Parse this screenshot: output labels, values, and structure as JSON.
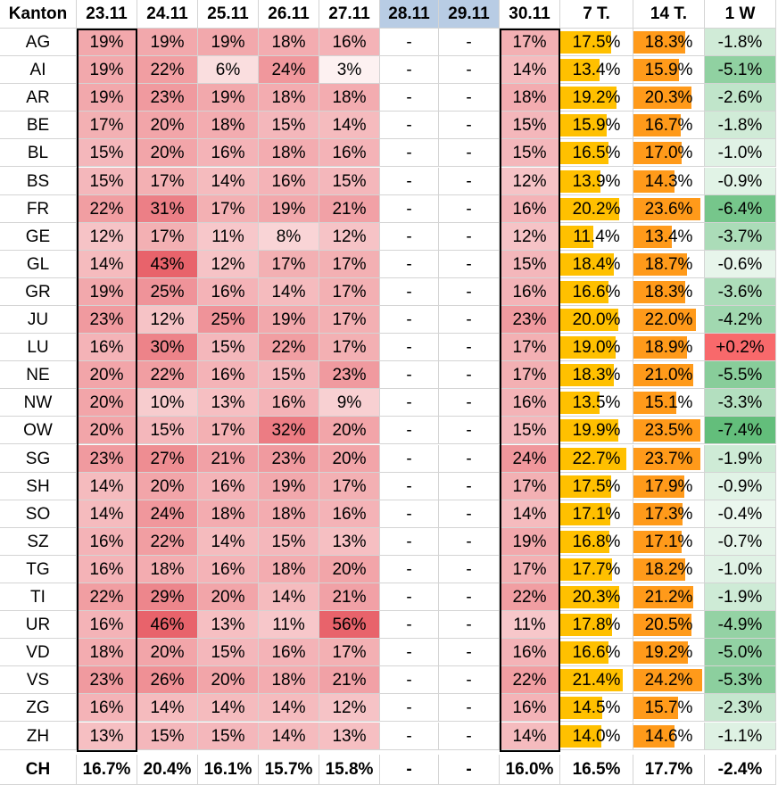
{
  "table": {
    "headers": [
      "Kanton",
      "23.11",
      "24.11",
      "25.11",
      "26.11",
      "27.11",
      "28.11",
      "29.11",
      "30.11",
      "7 T.",
      "14 T.",
      "1 W"
    ],
    "weekend_headers": [
      "28.11",
      "29.11"
    ],
    "rows": [
      [
        "AG",
        "19%",
        "19%",
        "19%",
        "18%",
        "16%",
        "-",
        "-",
        "17%",
        "17.5%",
        "18.3%",
        "-1.8%"
      ],
      [
        "AI",
        "19%",
        "22%",
        "6%",
        "24%",
        "3%",
        "-",
        "-",
        "14%",
        "13.4%",
        "15.9%",
        "-5.1%"
      ],
      [
        "AR",
        "19%",
        "23%",
        "19%",
        "18%",
        "18%",
        "-",
        "-",
        "18%",
        "19.2%",
        "20.3%",
        "-2.6%"
      ],
      [
        "BE",
        "17%",
        "20%",
        "18%",
        "15%",
        "14%",
        "-",
        "-",
        "15%",
        "15.9%",
        "16.7%",
        "-1.8%"
      ],
      [
        "BL",
        "15%",
        "20%",
        "16%",
        "18%",
        "16%",
        "-",
        "-",
        "15%",
        "16.5%",
        "17.0%",
        "-1.0%"
      ],
      [
        "BS",
        "15%",
        "17%",
        "14%",
        "16%",
        "15%",
        "-",
        "-",
        "12%",
        "13.9%",
        "14.3%",
        "-0.9%"
      ],
      [
        "FR",
        "22%",
        "31%",
        "17%",
        "19%",
        "21%",
        "-",
        "-",
        "16%",
        "20.2%",
        "23.6%",
        "-6.4%"
      ],
      [
        "GE",
        "12%",
        "17%",
        "11%",
        "8%",
        "12%",
        "-",
        "-",
        "12%",
        "11.4%",
        "13.4%",
        "-3.7%"
      ],
      [
        "GL",
        "14%",
        "43%",
        "12%",
        "17%",
        "17%",
        "-",
        "-",
        "15%",
        "18.4%",
        "18.7%",
        "-0.6%"
      ],
      [
        "GR",
        "19%",
        "25%",
        "16%",
        "14%",
        "17%",
        "-",
        "-",
        "16%",
        "16.6%",
        "18.3%",
        "-3.6%"
      ],
      [
        "JU",
        "23%",
        "12%",
        "25%",
        "19%",
        "17%",
        "-",
        "-",
        "23%",
        "20.0%",
        "22.0%",
        "-4.2%"
      ],
      [
        "LU",
        "16%",
        "30%",
        "15%",
        "22%",
        "17%",
        "-",
        "-",
        "17%",
        "19.0%",
        "18.9%",
        "+0.2%"
      ],
      [
        "NE",
        "20%",
        "22%",
        "16%",
        "15%",
        "23%",
        "-",
        "-",
        "17%",
        "18.3%",
        "21.0%",
        "-5.5%"
      ],
      [
        "NW",
        "20%",
        "10%",
        "13%",
        "16%",
        "9%",
        "-",
        "-",
        "16%",
        "13.5%",
        "15.1%",
        "-3.3%"
      ],
      [
        "OW",
        "20%",
        "15%",
        "17%",
        "32%",
        "20%",
        "-",
        "-",
        "15%",
        "19.9%",
        "23.5%",
        "-7.4%"
      ],
      [
        "SG",
        "23%",
        "27%",
        "21%",
        "23%",
        "20%",
        "-",
        "-",
        "24%",
        "22.7%",
        "23.7%",
        "-1.9%"
      ],
      [
        "SH",
        "14%",
        "20%",
        "16%",
        "19%",
        "17%",
        "-",
        "-",
        "17%",
        "17.5%",
        "17.9%",
        "-0.9%"
      ],
      [
        "SO",
        "14%",
        "24%",
        "18%",
        "18%",
        "16%",
        "-",
        "-",
        "14%",
        "17.1%",
        "17.3%",
        "-0.4%"
      ],
      [
        "SZ",
        "16%",
        "22%",
        "14%",
        "15%",
        "13%",
        "-",
        "-",
        "19%",
        "16.8%",
        "17.1%",
        "-0.7%"
      ],
      [
        "TG",
        "16%",
        "18%",
        "16%",
        "18%",
        "20%",
        "-",
        "-",
        "17%",
        "17.7%",
        "18.2%",
        "-1.0%"
      ],
      [
        "TI",
        "22%",
        "29%",
        "20%",
        "14%",
        "21%",
        "-",
        "-",
        "22%",
        "20.3%",
        "21.2%",
        "-1.9%"
      ],
      [
        "UR",
        "16%",
        "46%",
        "13%",
        "11%",
        "56%",
        "-",
        "-",
        "11%",
        "17.8%",
        "20.5%",
        "-4.9%"
      ],
      [
        "VD",
        "18%",
        "20%",
        "15%",
        "16%",
        "17%",
        "-",
        "-",
        "16%",
        "16.6%",
        "19.2%",
        "-5.0%"
      ],
      [
        "VS",
        "23%",
        "26%",
        "20%",
        "18%",
        "21%",
        "-",
        "-",
        "22%",
        "21.4%",
        "24.2%",
        "-5.3%"
      ],
      [
        "ZG",
        "16%",
        "14%",
        "14%",
        "14%",
        "12%",
        "-",
        "-",
        "16%",
        "14.5%",
        "15.7%",
        "-2.3%"
      ],
      [
        "ZH",
        "13%",
        "15%",
        "15%",
        "14%",
        "13%",
        "-",
        "-",
        "14%",
        "14.0%",
        "14.6%",
        "-1.1%"
      ]
    ],
    "total_row": [
      "CH",
      "16.7%",
      "20.4%",
      "16.1%",
      "15.7%",
      "15.8%",
      "-",
      "-",
      "16.0%",
      "16.5%",
      "17.7%",
      "-2.4%"
    ],
    "colors": {
      "heat_high": "#e8636b",
      "heat_low": "#fdf1f1",
      "bar_7t": "#ffc000",
      "bar_14t": "#ff9a1a",
      "green_strong": "#63be7b",
      "green_light": "#f3faf5",
      "red_positive": "#f8696b",
      "weekend_header": "#b8cce4"
    }
  }
}
